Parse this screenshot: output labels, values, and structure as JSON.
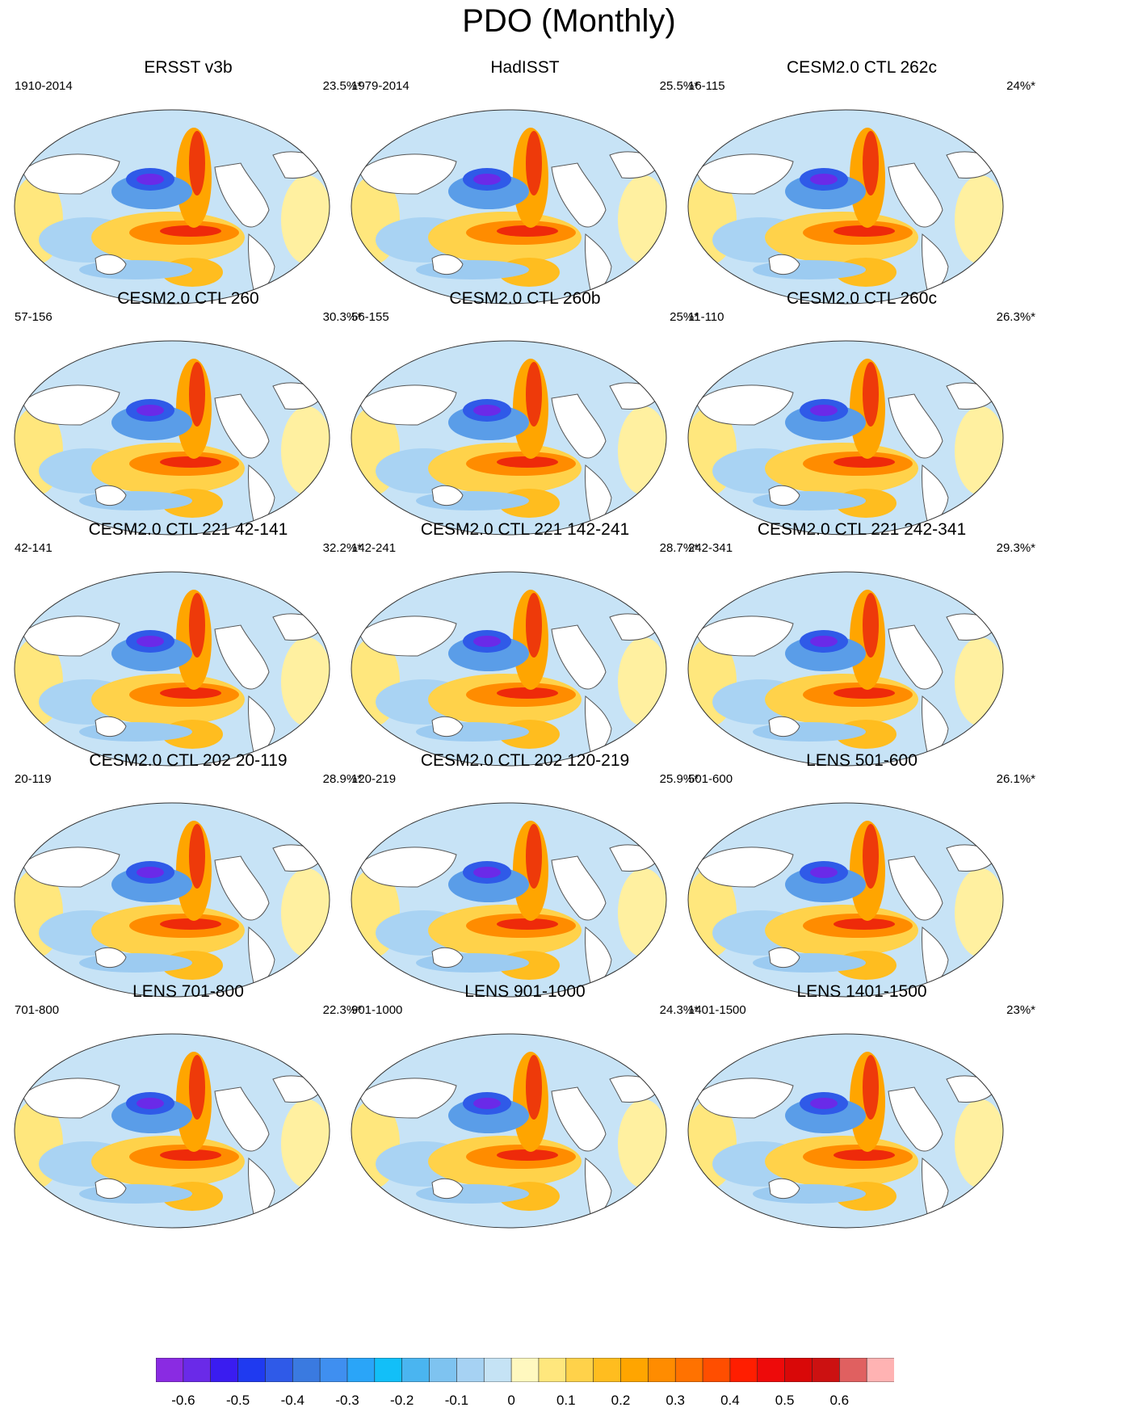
{
  "title": "PDO (Monthly)",
  "panels": [
    {
      "title": "ERSST v3b",
      "years": "1910-2014",
      "pct": "23.5%*"
    },
    {
      "title": "HadISST",
      "years": "1979-2014",
      "pct": "25.5%*"
    },
    {
      "title": "CESM2.0 CTL 262c",
      "years": "16-115",
      "pct": "24%*"
    },
    {
      "title": "CESM2.0 CTL 260",
      "years": "57-156",
      "pct": "30.3%*"
    },
    {
      "title": "CESM2.0 CTL 260b",
      "years": "56-155",
      "pct": "25%*"
    },
    {
      "title": "CESM2.0 CTL 260c",
      "years": "11-110",
      "pct": "26.3%*"
    },
    {
      "title": "CESM2.0 CTL 221 42-141",
      "years": "42-141",
      "pct": "32.2%*"
    },
    {
      "title": "CESM2.0 CTL 221 142-241",
      "years": "142-241",
      "pct": "28.7%*"
    },
    {
      "title": "CESM2.0 CTL 221 242-341",
      "years": "242-341",
      "pct": "29.3%*"
    },
    {
      "title": "CESM2.0 CTL 202 20-119",
      "years": "20-119",
      "pct": "28.9%*"
    },
    {
      "title": "CESM2.0 CTL 202 120-219",
      "years": "120-219",
      "pct": "25.9%*"
    },
    {
      "title": "LENS 501-600",
      "years": "501-600",
      "pct": "26.1%*"
    },
    {
      "title": "LENS 701-800",
      "years": "701-800",
      "pct": "22.3%*"
    },
    {
      "title": "LENS 901-1000",
      "years": "901-1000",
      "pct": "24.3%*"
    },
    {
      "title": "LENS 1401-1500",
      "years": "1401-1500",
      "pct": "23%*"
    }
  ],
  "colorbar": {
    "colors": [
      "#8a2be2",
      "#6a2ae8",
      "#3a1cf0",
      "#1f3af0",
      "#2f5ae8",
      "#3a7ae0",
      "#3f8ff0",
      "#2aa5f8",
      "#12bff8",
      "#4ab5f0",
      "#7ec3f0",
      "#a6d2f3",
      "#c5e3f5",
      "#fff8bf",
      "#ffe77d",
      "#ffd24a",
      "#ffbd1f",
      "#ffa500",
      "#ff8c00",
      "#ff7200",
      "#ff4e00",
      "#ff1e00",
      "#ee0a0a",
      "#d90808",
      "#cc1111",
      "#e06060",
      "#ffb3b3"
    ],
    "labels": [
      "-0.6",
      "-0.5",
      "-0.4",
      "-0.3",
      "-0.2",
      "-0.1",
      "0",
      "0.1",
      "0.2",
      "0.3",
      "0.4",
      "0.5",
      "0.6"
    ]
  }
}
